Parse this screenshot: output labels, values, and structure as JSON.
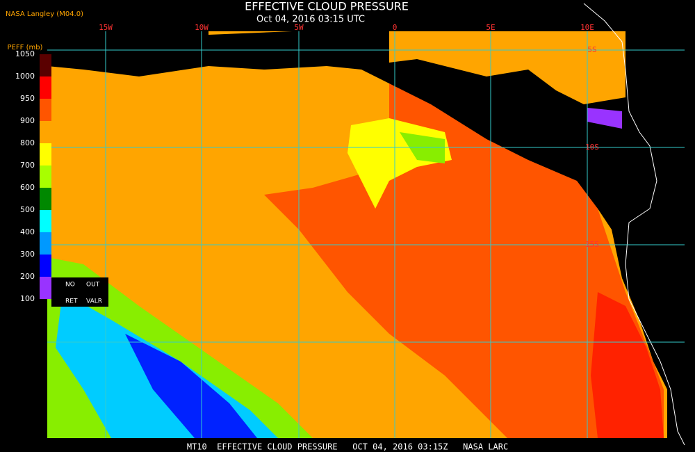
{
  "header": {
    "title": "EFFECTIVE CLOUD PRESSURE",
    "subtitle": "Oct 04, 2016 03:15 UTC",
    "source": "NASA Langley (M04.0)"
  },
  "colorbar": {
    "title": "PEFF (mb)",
    "ticks": [
      1050,
      1000,
      950,
      900,
      800,
      700,
      600,
      500,
      400,
      300,
      200,
      100
    ],
    "colors": [
      "#5a0000",
      "#ff0000",
      "#ff5500",
      "#ffa500",
      "#ffff00",
      "#a8ff00",
      "#008800",
      "#00ffff",
      "#0099ff",
      "#0000ff",
      "#9933ff"
    ]
  },
  "legend": {
    "items": [
      "NO",
      "OUT",
      "RET",
      "VALR"
    ]
  },
  "grid": {
    "lon_labels": [
      "15W",
      "10W",
      "5W",
      "0",
      "5E",
      "10E"
    ],
    "lat_labels": [
      "5S",
      "10S",
      "15S"
    ]
  },
  "footer": {
    "text": "MT10  EFFECTIVE CLOUD PRESSURE   OCT 04, 2016 03:15Z   NASA LARC"
  }
}
